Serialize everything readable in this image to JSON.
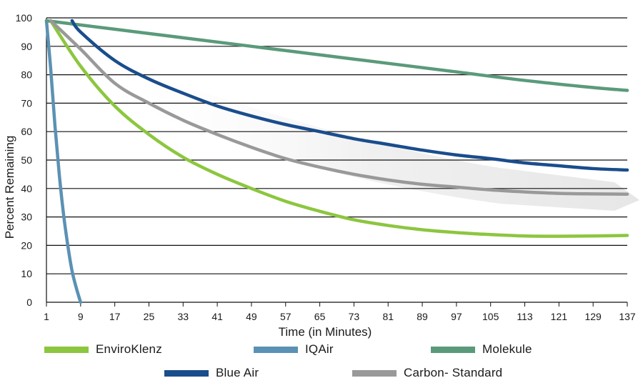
{
  "chart_data": {
    "type": "line",
    "xlabel": "Time (in Minutes)",
    "ylabel": "Percent Remaining",
    "xlim": [
      1,
      137
    ],
    "ylim": [
      0,
      100
    ],
    "x_ticks": [
      1,
      9,
      17,
      25,
      33,
      41,
      49,
      57,
      65,
      73,
      81,
      89,
      97,
      105,
      113,
      121,
      129,
      137
    ],
    "y_ticks": [
      0,
      10,
      20,
      30,
      40,
      50,
      60,
      70,
      80,
      90,
      100
    ],
    "grid": "horizontal",
    "legend_position": "bottom",
    "series": [
      {
        "name": "EnviroKlenz",
        "color": "#8cc63f",
        "x": [
          2,
          9,
          17,
          25,
          33,
          41,
          49,
          57,
          65,
          73,
          81,
          89,
          97,
          105,
          113,
          121,
          129,
          137
        ],
        "y": [
          99,
          83,
          69,
          59,
          51,
          45,
          40,
          35.5,
          32,
          29,
          27,
          25.5,
          24.5,
          23.8,
          23.3,
          23.2,
          23.3,
          23.5
        ]
      },
      {
        "name": "IQAir",
        "color": "#5b91b4",
        "x": [
          1,
          2,
          3,
          4,
          5,
          6,
          7,
          8,
          9
        ],
        "y": [
          99,
          82,
          62,
          45,
          31,
          20,
          11,
          5,
          0
        ]
      },
      {
        "name": "Molekule",
        "color": "#5a9a7a",
        "x": [
          1,
          17,
          33,
          49,
          65,
          81,
          97,
          113,
          129,
          137
        ],
        "y": [
          99,
          96,
          93,
          90,
          87,
          84,
          81,
          78,
          75.5,
          74.5
        ]
      },
      {
        "name": "Blue Air",
        "color": "#1a4d8c",
        "x": [
          7,
          9,
          17,
          25,
          33,
          41,
          49,
          57,
          65,
          73,
          81,
          89,
          97,
          105,
          113,
          121,
          129,
          137
        ],
        "y": [
          99,
          95,
          85,
          78.5,
          73.5,
          69,
          65.5,
          62.5,
          60,
          57.5,
          55.5,
          53.5,
          51.8,
          50.5,
          49,
          48,
          47,
          46.5
        ]
      },
      {
        "name": "Carbon- Standard",
        "color": "#999999",
        "x": [
          2,
          9,
          17,
          25,
          33,
          41,
          49,
          57,
          65,
          73,
          81,
          89,
          97,
          105,
          113,
          121,
          129,
          137
        ],
        "y": [
          99,
          89,
          77,
          70,
          64,
          59,
          54.5,
          50.5,
          47.5,
          45,
          43,
          41.5,
          40.5,
          39.5,
          38.8,
          38.3,
          38.1,
          38
        ]
      }
    ]
  }
}
